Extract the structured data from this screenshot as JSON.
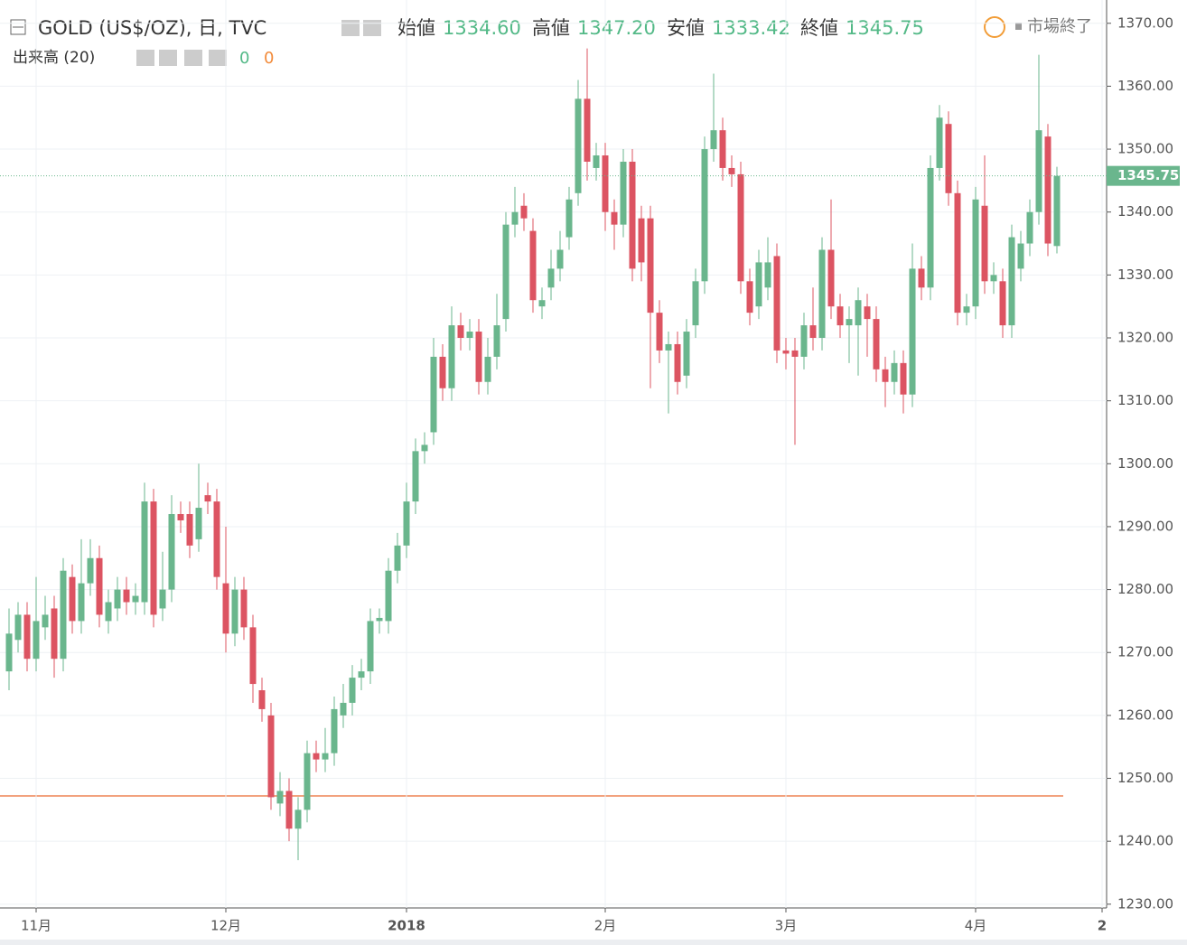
{
  "header": {
    "symbol": "GOLD (US$/OZ), 日, TVC",
    "open_label": "始値",
    "open": "1334.60",
    "high_label": "高値",
    "high": "1347.20",
    "low_label": "安値",
    "low": "1333.42",
    "close_label": "終値",
    "close": "1345.75",
    "status": "市場終了",
    "volume_label": "出来高 (20)",
    "volume_a": "0",
    "volume_b": "0"
  },
  "chart_data": {
    "type": "candlestick",
    "up_color": "#6ab68d",
    "down_color": "#dc5462",
    "grid": true,
    "xlim": [
      -1,
      121.5
    ],
    "xticks": [
      {
        "value": 3,
        "label": "11月"
      },
      {
        "value": 24,
        "label": "12月"
      },
      {
        "value": 44,
        "label": "2018"
      },
      {
        "value": 66,
        "label": "2月"
      },
      {
        "value": 86,
        "label": "3月"
      },
      {
        "value": 107,
        "label": "4月"
      },
      {
        "value": 121,
        "label": "2"
      }
    ],
    "ylim": [
      1229.4,
      1373.7
    ],
    "yticks": [
      {
        "value": 1230,
        "label": "1230.00"
      },
      {
        "value": 1240,
        "label": "1240.00"
      },
      {
        "value": 1250,
        "label": "1250.00"
      },
      {
        "value": 1260,
        "label": "1260.00"
      },
      {
        "value": 1270,
        "label": "1270.00"
      },
      {
        "value": 1280,
        "label": "1280.00"
      },
      {
        "value": 1290,
        "label": "1290.00"
      },
      {
        "value": 1300,
        "label": "1300.00"
      },
      {
        "value": 1310,
        "label": "1310.00"
      },
      {
        "value": 1320,
        "label": "1320.00"
      },
      {
        "value": 1330,
        "label": "1330.00"
      },
      {
        "value": 1340,
        "label": "1340.00"
      },
      {
        "value": 1350,
        "label": "1350.00"
      },
      {
        "value": 1360,
        "label": "1360.00"
      },
      {
        "value": 1370,
        "label": "1370.00"
      }
    ],
    "open": [
      1267,
      1272,
      1276,
      1269,
      1274,
      1277,
      1269,
      1282,
      1275,
      1281,
      1285,
      1275,
      1277,
      1280,
      1278,
      1278,
      1294,
      1277,
      1280,
      1292,
      1292,
      1288,
      1295,
      1294,
      1281,
      1273,
      1280,
      1274,
      1264,
      1260,
      1246,
      1248,
      1242,
      1245,
      1254,
      1253,
      1254,
      1260,
      1262,
      1266,
      1267,
      1275,
      1275,
      1283,
      1287,
      1294,
      1302,
      1305,
      1317,
      1312,
      1322,
      1320,
      1321,
      1313,
      1317,
      1323,
      1338,
      1341,
      1337,
      1325,
      1328,
      1331,
      1336,
      1343,
      1358,
      1347,
      1349,
      1340,
      1338,
      1348,
      1339,
      1339,
      1324,
      1318,
      1319,
      1314,
      1322,
      1329,
      1350,
      1353,
      1347,
      1346,
      1329,
      1325,
      1328,
      1333,
      1318,
      1318,
      1317,
      1322,
      1320,
      1334,
      1325,
      1322,
      1322,
      1325,
      1323,
      1315,
      1313,
      1316,
      1311,
      1331,
      1328,
      1347,
      1354,
      1343,
      1324,
      1325,
      1341,
      1329,
      1329,
      1322,
      1331,
      1335,
      1340,
      1352,
      1334.6
    ],
    "high": [
      1277,
      1278,
      1278,
      1282,
      1279,
      1279,
      1285,
      1284,
      1288,
      1288,
      1287,
      1280,
      1282,
      1282,
      1281,
      1297,
      1296,
      1286,
      1295,
      1294,
      1294,
      1300,
      1297,
      1296,
      1290,
      1282,
      1282,
      1276,
      1266,
      1262,
      1251,
      1250,
      1247,
      1256,
      1256,
      1258,
      1263,
      1265,
      1268,
      1269,
      1277,
      1277,
      1285,
      1289,
      1297,
      1304,
      1305,
      1320,
      1319,
      1325,
      1324,
      1323,
      1323,
      1320,
      1327,
      1340,
      1344,
      1343,
      1339,
      1328,
      1334,
      1337,
      1344,
      1361,
      1366,
      1351,
      1351,
      1342,
      1350,
      1350,
      1341,
      1341,
      1326,
      1321,
      1321,
      1323,
      1331,
      1352,
      1362,
      1355,
      1349,
      1348,
      1331,
      1334,
      1336,
      1335,
      1320,
      1320,
      1324,
      1328,
      1336,
      1342,
      1327,
      1325,
      1328,
      1327,
      1325,
      1317,
      1318,
      1318,
      1335,
      1333,
      1349,
      1357,
      1356,
      1345,
      1327,
      1344,
      1349,
      1332,
      1331,
      1338,
      1337,
      1342,
      1365,
      1354,
      1347.2
    ],
    "low": [
      1264,
      1270,
      1267,
      1267,
      1272,
      1266,
      1267,
      1273,
      1273,
      1279,
      1274,
      1273,
      1275,
      1276,
      1276,
      1276,
      1274,
      1275,
      1278,
      1289,
      1285,
      1286,
      1292,
      1280,
      1270,
      1271,
      1272,
      1262,
      1259,
      1245,
      1244,
      1240,
      1237,
      1243,
      1251,
      1251,
      1252,
      1258,
      1260,
      1264,
      1265,
      1273,
      1273,
      1281,
      1285,
      1292,
      1300,
      1303,
      1310,
      1310,
      1318,
      1318,
      1311,
      1311,
      1315,
      1321,
      1336,
      1337,
      1324,
      1323,
      1326,
      1329,
      1334,
      1341,
      1345,
      1345,
      1337,
      1334,
      1336,
      1329,
      1329,
      1312,
      1316,
      1308,
      1311,
      1312,
      1320,
      1327,
      1348,
      1345,
      1344,
      1327,
      1322,
      1323,
      1326,
      1316,
      1315,
      1303,
      1315,
      1318,
      1318,
      1323,
      1320,
      1316,
      1314,
      1317,
      1313,
      1309,
      1311,
      1308,
      1309,
      1326,
      1326,
      1345,
      1341,
      1322,
      1322,
      1323,
      1327,
      1327,
      1320,
      1320,
      1329,
      1333,
      1338,
      1333,
      1333.42
    ],
    "close": [
      1273,
      1276,
      1269,
      1275,
      1276,
      1269,
      1283,
      1275,
      1281,
      1285,
      1276,
      1278,
      1280,
      1278,
      1279,
      1294,
      1276,
      1280,
      1292,
      1291,
      1287,
      1293,
      1294,
      1282,
      1273,
      1280,
      1274,
      1265,
      1261,
      1247,
      1248,
      1242,
      1245,
      1254,
      1253,
      1254,
      1261,
      1262,
      1266,
      1267,
      1275,
      1275.5,
      1283,
      1287,
      1294,
      1302,
      1303,
      1317,
      1312,
      1322,
      1320,
      1321,
      1313,
      1317,
      1322,
      1338,
      1340,
      1339,
      1326,
      1326,
      1331,
      1334,
      1342,
      1358,
      1348,
      1349,
      1340,
      1338,
      1348,
      1331,
      1332,
      1324,
      1318,
      1319,
      1313,
      1321,
      1329,
      1350,
      1353,
      1347,
      1346,
      1329,
      1324,
      1332,
      1332,
      1318,
      1317.5,
      1317,
      1322,
      1320,
      1334,
      1325,
      1322,
      1323,
      1326,
      1323,
      1315,
      1313,
      1316,
      1311,
      1331,
      1328,
      1347,
      1355,
      1343,
      1324,
      1325,
      1342,
      1329,
      1330,
      1322,
      1336,
      1335,
      1340,
      1353,
      1335,
      1345.75
    ]
  }
}
